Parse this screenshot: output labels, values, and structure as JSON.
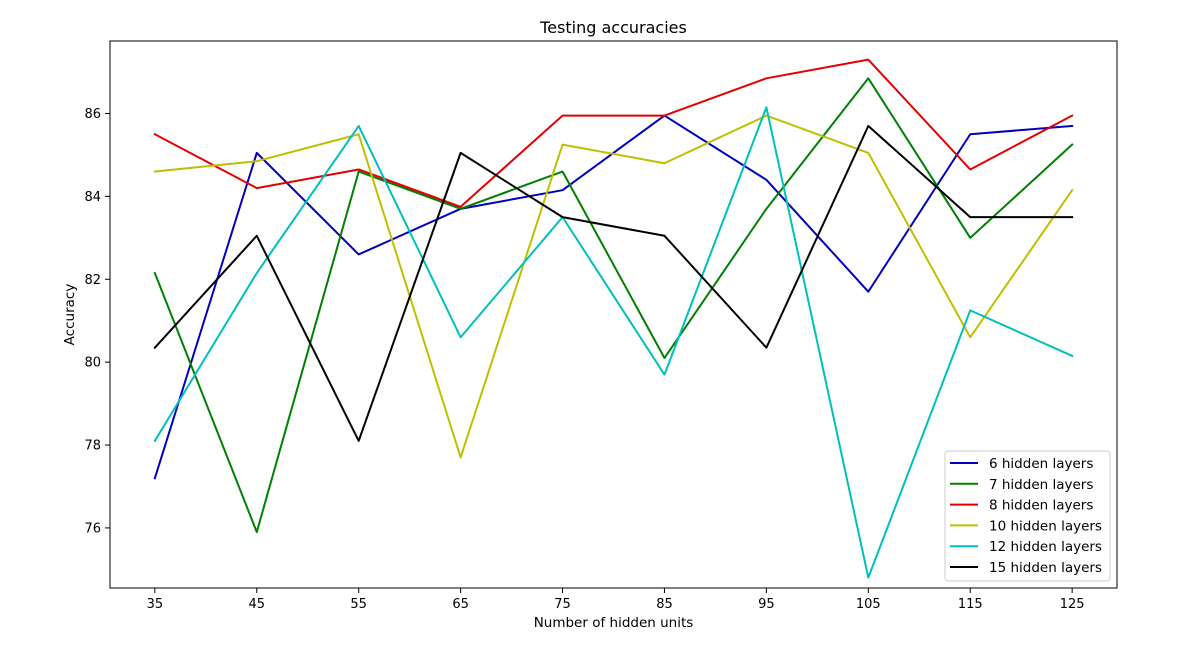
{
  "chart_data": {
    "type": "line",
    "title": "Testing accuracies",
    "xlabel": "Number of hidden units",
    "ylabel": "Accuracy",
    "x": [
      35,
      45,
      55,
      65,
      75,
      85,
      95,
      105,
      115,
      125
    ],
    "xlim": [
      30.6,
      129.4
    ],
    "ylim": [
      74.55,
      87.75
    ],
    "yticks": [
      76,
      78,
      80,
      82,
      84,
      86
    ],
    "grid": false,
    "legend_position": "lower-right",
    "series": [
      {
        "name": "6 hidden layers",
        "color": "#0000bf",
        "values": [
          77.2,
          85.05,
          82.6,
          83.7,
          84.15,
          85.95,
          84.4,
          81.7,
          85.5,
          85.7
        ]
      },
      {
        "name": "7 hidden layers",
        "color": "#008000",
        "values": [
          82.15,
          75.9,
          84.6,
          83.7,
          84.6,
          80.1,
          83.7,
          86.85,
          83.0,
          85.25
        ]
      },
      {
        "name": "8 hidden layers",
        "color": "#e50000",
        "values": [
          85.5,
          84.2,
          84.65,
          83.75,
          85.95,
          85.95,
          86.85,
          87.3,
          84.65,
          85.95
        ]
      },
      {
        "name": "10 hidden layers",
        "color": "#bfbf00",
        "values": [
          84.6,
          84.85,
          85.5,
          77.7,
          85.25,
          84.8,
          85.95,
          85.05,
          80.6,
          84.15
        ]
      },
      {
        "name": "12 hidden layers",
        "color": "#00bfbf",
        "values": [
          78.1,
          82.15,
          85.7,
          80.6,
          83.5,
          79.7,
          86.15,
          74.8,
          81.25,
          80.15
        ]
      },
      {
        "name": "15 hidden layers",
        "color": "#000000",
        "values": [
          80.35,
          83.05,
          78.1,
          85.05,
          83.5,
          83.05,
          80.35,
          85.7,
          83.5,
          83.5
        ]
      }
    ]
  }
}
